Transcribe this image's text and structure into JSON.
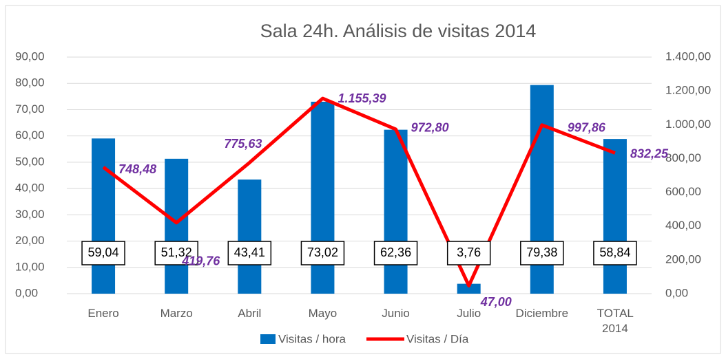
{
  "chart_data": {
    "type": "bar_line",
    "title": "Sala 24h. Análisis de visitas 2014",
    "categories": [
      "Enero",
      "Marzo",
      "Abril",
      "Mayo",
      "Junio",
      "Julio",
      "Diciembre",
      "TOTAL 2014"
    ],
    "series": [
      {
        "name": "Visitas / hora",
        "type": "bar",
        "color": "#0070c0",
        "axis": "y",
        "values": [
          59.04,
          51.32,
          43.41,
          73.02,
          62.36,
          3.76,
          79.38,
          58.84
        ],
        "value_labels": [
          "59,04",
          "51,32",
          "43,41",
          "73,02",
          "62,36",
          "3,76",
          "79,38",
          "58,84"
        ]
      },
      {
        "name": "Visitas / Día",
        "type": "line",
        "color": "#ff0000",
        "axis": "y2",
        "values": [
          748.48,
          419.76,
          775.63,
          1155.39,
          972.8,
          47.0,
          997.86,
          832.25
        ],
        "value_labels": [
          "748,48",
          "419,76",
          "775,63",
          "1.155,39",
          "972,80",
          "47,00",
          "997,86",
          "832,25"
        ]
      }
    ],
    "ylim": [
      0,
      90
    ],
    "yticks": [
      {
        "value": 0,
        "label": "0,00"
      },
      {
        "value": 10,
        "label": "10,00"
      },
      {
        "value": 20,
        "label": "20,00"
      },
      {
        "value": 30,
        "label": "30,00"
      },
      {
        "value": 40,
        "label": "40,00"
      },
      {
        "value": 50,
        "label": "50,00"
      },
      {
        "value": 60,
        "label": "60,00"
      },
      {
        "value": 70,
        "label": "70,00"
      },
      {
        "value": 80,
        "label": "80,00"
      },
      {
        "value": 90,
        "label": "90,00"
      }
    ],
    "y2lim": [
      0,
      1400
    ],
    "y2ticks": [
      {
        "value": 0,
        "label": "0,00"
      },
      {
        "value": 200,
        "label": "200,00"
      },
      {
        "value": 400,
        "label": "400,00"
      },
      {
        "value": 600,
        "label": "600,00"
      },
      {
        "value": 800,
        "label": "800,00"
      },
      {
        "value": 1000,
        "label": "1.000,00"
      },
      {
        "value": 1200,
        "label": "1.200,00"
      },
      {
        "value": 1400,
        "label": "1.400,00"
      }
    ],
    "grid": true,
    "legend": "bottom"
  }
}
